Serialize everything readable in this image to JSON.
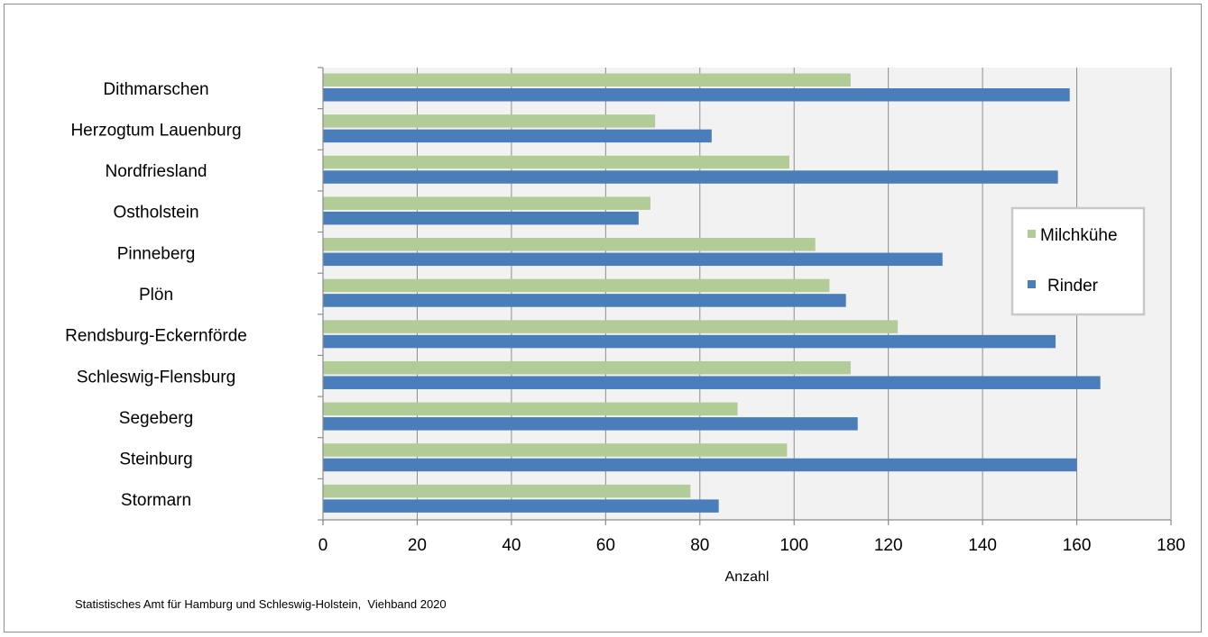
{
  "chart_data": {
    "type": "bar",
    "orientation": "horizontal",
    "categories": [
      "Dithmarschen",
      "Herzogtum Lauenburg",
      "Nordfriesland",
      "Ostholstein",
      "Pinneberg",
      "Plön",
      "Rendsburg-Eckernförde",
      "Schleswig-Flensburg",
      "Segeberg",
      "Steinburg",
      "Stormarn"
    ],
    "series": [
      {
        "name": "Milchkühe",
        "color": "#b1cc96",
        "values": [
          112,
          70.5,
          99,
          69.5,
          104.5,
          107.5,
          122,
          112,
          88,
          98.5,
          78
        ]
      },
      {
        "name": "Rinder",
        "color": "#4a7ebb",
        "values": [
          158.5,
          82.5,
          156,
          67,
          131.5,
          111,
          155.5,
          165,
          113.5,
          160,
          84
        ]
      }
    ],
    "xlabel": "Anzahl",
    "xlim": [
      0,
      180
    ],
    "xticks": [
      0,
      20,
      40,
      60,
      80,
      100,
      120,
      140,
      160,
      180
    ],
    "grid": true,
    "legend_position": "right"
  },
  "source_note": "Statistisches Amt für Hamburg und Schleswig-Holstein,  Viehband 2020"
}
